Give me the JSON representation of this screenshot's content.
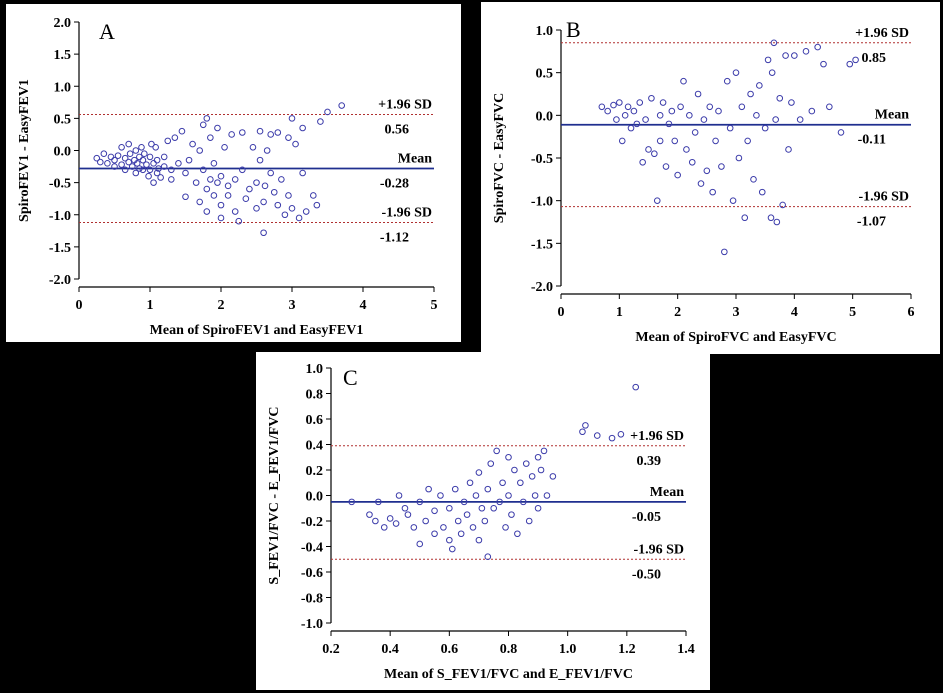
{
  "chart_data": [
    {
      "type": "scatter",
      "panel_label": "A",
      "xlabel": "Mean of SpiroFEV1 and EasyFEV1",
      "ylabel": "SpiroFEV1 - EasyFEV1",
      "xlim": [
        0,
        5
      ],
      "ylim": [
        -2.0,
        2.0
      ],
      "xticks": [
        0,
        1,
        2,
        3,
        4,
        5
      ],
      "xtick_labels": [
        "0",
        "1",
        "2",
        "3",
        "4",
        "5"
      ],
      "yticks": [
        -2.0,
        -1.5,
        -1.0,
        -0.5,
        0.0,
        0.5,
        1.0,
        1.5,
        2.0
      ],
      "ytick_labels": [
        "-2.0",
        "-1.5",
        "-1.0",
        "-0.5",
        "0.0",
        "0.5",
        "1.0",
        "1.5",
        "2.0"
      ],
      "lines": {
        "upper": {
          "label": "+1.96 SD",
          "value_label": "0.56",
          "y": 0.56
        },
        "mean": {
          "label": "Mean",
          "value_label": "-0.28",
          "y": -0.28
        },
        "lower": {
          "label": "-1.96 SD",
          "value_label": "-1.12",
          "y": -1.12
        }
      },
      "colors": {
        "points": "#3c3caa",
        "mean_line": "#1f2f8f",
        "sd_line": "#b03030"
      },
      "points": [
        [
          0.25,
          -0.12
        ],
        [
          0.3,
          -0.18
        ],
        [
          0.35,
          -0.05
        ],
        [
          0.4,
          -0.2
        ],
        [
          0.45,
          -0.1
        ],
        [
          0.5,
          -0.15
        ],
        [
          0.5,
          -0.25
        ],
        [
          0.55,
          -0.08
        ],
        [
          0.6,
          -0.22
        ],
        [
          0.6,
          0.05
        ],
        [
          0.65,
          -0.3
        ],
        [
          0.65,
          -0.12
        ],
        [
          0.7,
          -0.18
        ],
        [
          0.7,
          0.1
        ],
        [
          0.72,
          -0.05
        ],
        [
          0.75,
          -0.25
        ],
        [
          0.78,
          -0.15
        ],
        [
          0.8,
          -0.35
        ],
        [
          0.8,
          0.0
        ],
        [
          0.82,
          -0.2
        ],
        [
          0.85,
          -0.1
        ],
        [
          0.85,
          -0.28
        ],
        [
          0.88,
          0.05
        ],
        [
          0.9,
          -0.3
        ],
        [
          0.9,
          -0.15
        ],
        [
          0.92,
          -0.05
        ],
        [
          0.95,
          -0.22
        ],
        [
          0.98,
          -0.4
        ],
        [
          1.0,
          -0.1
        ],
        [
          1.0,
          -0.3
        ],
        [
          1.02,
          0.1
        ],
        [
          1.05,
          -0.5
        ],
        [
          1.05,
          -0.2
        ],
        [
          1.08,
          0.05
        ],
        [
          1.1,
          -0.35
        ],
        [
          1.1,
          -0.15
        ],
        [
          1.12,
          -0.28
        ],
        [
          1.15,
          -0.42
        ],
        [
          1.2,
          -0.1
        ],
        [
          1.2,
          -0.25
        ],
        [
          1.25,
          0.15
        ],
        [
          1.3,
          -0.3
        ],
        [
          1.3,
          -0.45
        ],
        [
          1.35,
          0.2
        ],
        [
          1.4,
          -0.2
        ],
        [
          1.45,
          0.3
        ],
        [
          1.5,
          -0.35
        ],
        [
          1.5,
          -0.72
        ],
        [
          1.55,
          -0.15
        ],
        [
          1.6,
          0.1
        ],
        [
          1.65,
          -0.5
        ],
        [
          1.7,
          0.0
        ],
        [
          1.7,
          -0.8
        ],
        [
          1.75,
          0.4
        ],
        [
          1.75,
          -0.3
        ],
        [
          1.8,
          0.5
        ],
        [
          1.8,
          -0.6
        ],
        [
          1.8,
          -0.95
        ],
        [
          1.85,
          -0.45
        ],
        [
          1.85,
          0.2
        ],
        [
          1.9,
          -0.7
        ],
        [
          1.9,
          -0.2
        ],
        [
          1.95,
          0.35
        ],
        [
          1.95,
          -0.5
        ],
        [
          2.0,
          -0.85
        ],
        [
          2.0,
          -0.4
        ],
        [
          2.0,
          -1.05
        ],
        [
          2.05,
          0.05
        ],
        [
          2.1,
          -0.55
        ],
        [
          2.1,
          -0.7
        ],
        [
          2.15,
          0.25
        ],
        [
          2.2,
          -0.45
        ],
        [
          2.2,
          -0.95
        ],
        [
          2.25,
          -1.1
        ],
        [
          2.3,
          -0.3
        ],
        [
          2.3,
          0.28
        ],
        [
          2.35,
          -0.75
        ],
        [
          2.4,
          -0.6
        ],
        [
          2.45,
          0.05
        ],
        [
          2.5,
          -0.9
        ],
        [
          2.5,
          -0.5
        ],
        [
          2.55,
          0.3
        ],
        [
          2.55,
          -0.15
        ],
        [
          2.6,
          -0.8
        ],
        [
          2.6,
          -1.28
        ],
        [
          2.62,
          -0.55
        ],
        [
          2.65,
          0.0
        ],
        [
          2.7,
          -0.35
        ],
        [
          2.7,
          0.25
        ],
        [
          2.75,
          -0.65
        ],
        [
          2.8,
          -0.85
        ],
        [
          2.8,
          0.28
        ],
        [
          2.85,
          -0.45
        ],
        [
          2.9,
          -1.0
        ],
        [
          2.95,
          0.2
        ],
        [
          2.95,
          -0.7
        ],
        [
          3.0,
          0.5
        ],
        [
          3.0,
          -0.9
        ],
        [
          3.05,
          0.1
        ],
        [
          3.1,
          -1.05
        ],
        [
          3.15,
          -0.35
        ],
        [
          3.15,
          0.35
        ],
        [
          3.2,
          -0.95
        ],
        [
          3.3,
          -0.7
        ],
        [
          3.35,
          -0.85
        ],
        [
          3.4,
          0.45
        ],
        [
          3.5,
          0.6
        ],
        [
          3.7,
          0.7
        ]
      ]
    },
    {
      "type": "scatter",
      "panel_label": "B",
      "xlabel": "Mean of SpiroFVC and EasyFVC",
      "ylabel": "SpiroFVC - EasyFVC",
      "xlim": [
        0,
        6
      ],
      "ylim": [
        -2.0,
        1.0
      ],
      "xticks": [
        0,
        1,
        2,
        3,
        4,
        5,
        6
      ],
      "xtick_labels": [
        "0",
        "1",
        "2",
        "3",
        "4",
        "5",
        "6"
      ],
      "yticks": [
        -2.0,
        -1.5,
        -1.0,
        -0.5,
        0.0,
        0.5,
        1.0
      ],
      "ytick_labels": [
        "-2.0",
        "-1.5",
        "-1.0",
        "-0.5",
        "0.0",
        "0.5",
        "1.0"
      ],
      "lines": {
        "upper": {
          "label": "+1.96 SD",
          "value_label": "0.85",
          "y": 0.85
        },
        "mean": {
          "label": "Mean",
          "value_label": "-0.11",
          "y": -0.11
        },
        "lower": {
          "label": "-1.96 SD",
          "value_label": "-1.07",
          "y": -1.07
        }
      },
      "colors": {
        "points": "#3c3caa",
        "mean_line": "#1f2f8f",
        "sd_line": "#b03030"
      },
      "points": [
        [
          0.7,
          0.1
        ],
        [
          0.8,
          0.05
        ],
        [
          0.9,
          0.12
        ],
        [
          0.95,
          -0.05
        ],
        [
          1.0,
          0.15
        ],
        [
          1.05,
          -0.3
        ],
        [
          1.1,
          0.0
        ],
        [
          1.15,
          0.1
        ],
        [
          1.2,
          -0.15
        ],
        [
          1.25,
          0.05
        ],
        [
          1.3,
          -0.1
        ],
        [
          1.35,
          0.15
        ],
        [
          1.4,
          -0.55
        ],
        [
          1.45,
          -0.05
        ],
        [
          1.5,
          -0.4
        ],
        [
          1.55,
          0.2
        ],
        [
          1.6,
          -0.45
        ],
        [
          1.65,
          -1.0
        ],
        [
          1.7,
          0.0
        ],
        [
          1.7,
          -0.3
        ],
        [
          1.75,
          0.15
        ],
        [
          1.8,
          -0.6
        ],
        [
          1.85,
          -0.1
        ],
        [
          1.9,
          0.05
        ],
        [
          1.95,
          -0.3
        ],
        [
          2.0,
          -0.7
        ],
        [
          2.05,
          0.1
        ],
        [
          2.1,
          0.4
        ],
        [
          2.15,
          -0.4
        ],
        [
          2.2,
          0.0
        ],
        [
          2.25,
          -0.55
        ],
        [
          2.3,
          -0.2
        ],
        [
          2.35,
          0.25
        ],
        [
          2.4,
          -0.8
        ],
        [
          2.45,
          -0.05
        ],
        [
          2.5,
          -0.65
        ],
        [
          2.55,
          0.1
        ],
        [
          2.6,
          -0.9
        ],
        [
          2.65,
          -0.3
        ],
        [
          2.7,
          0.05
        ],
        [
          2.75,
          -0.6
        ],
        [
          2.8,
          -1.6
        ],
        [
          2.85,
          0.4
        ],
        [
          2.9,
          -0.15
        ],
        [
          2.95,
          -1.0
        ],
        [
          3.0,
          0.5
        ],
        [
          3.05,
          -0.5
        ],
        [
          3.1,
          0.1
        ],
        [
          3.15,
          -1.2
        ],
        [
          3.2,
          -0.3
        ],
        [
          3.25,
          0.25
        ],
        [
          3.3,
          -0.75
        ],
        [
          3.35,
          0.0
        ],
        [
          3.4,
          0.35
        ],
        [
          3.45,
          -0.9
        ],
        [
          3.5,
          -0.15
        ],
        [
          3.55,
          0.65
        ],
        [
          3.6,
          -1.2
        ],
        [
          3.62,
          0.5
        ],
        [
          3.65,
          0.85
        ],
        [
          3.68,
          -0.05
        ],
        [
          3.7,
          -1.25
        ],
        [
          3.75,
          0.2
        ],
        [
          3.8,
          -1.05
        ],
        [
          3.85,
          0.7
        ],
        [
          3.9,
          -0.4
        ],
        [
          3.95,
          0.15
        ],
        [
          4.0,
          0.7
        ],
        [
          4.1,
          -0.05
        ],
        [
          4.2,
          0.75
        ],
        [
          4.3,
          0.05
        ],
        [
          4.4,
          0.8
        ],
        [
          4.5,
          0.6
        ],
        [
          4.6,
          0.1
        ],
        [
          4.8,
          -0.2
        ],
        [
          4.95,
          0.6
        ],
        [
          5.05,
          0.65
        ]
      ]
    },
    {
      "type": "scatter",
      "panel_label": "C",
      "xlabel": "Mean of S_FEV1/FVC and E_FEV1/FVC",
      "ylabel": "S_FEV1/FVC - E_FEV1/FVC",
      "xlim": [
        0.2,
        1.4
      ],
      "ylim": [
        -1.0,
        1.0
      ],
      "xticks": [
        0.2,
        0.4,
        0.6,
        0.8,
        1.0,
        1.2,
        1.4
      ],
      "xtick_labels": [
        "0.2",
        "0.4",
        "0.6",
        "0.8",
        "1.0",
        "1.2",
        "1.4"
      ],
      "yticks": [
        -1.0,
        -0.8,
        -0.6,
        -0.4,
        -0.2,
        0.0,
        0.2,
        0.4,
        0.6,
        0.8,
        1.0
      ],
      "ytick_labels": [
        "-1.0",
        "-0.8",
        "-0.6",
        "-0.4",
        "-0.2",
        "0.0",
        "0.2",
        "0.4",
        "0.6",
        "0.8",
        "1.0"
      ],
      "lines": {
        "upper": {
          "label": "+1.96 SD",
          "value_label": "0.39",
          "y": 0.39
        },
        "mean": {
          "label": "Mean",
          "value_label": "-0.05",
          "y": -0.05
        },
        "lower": {
          "label": "-1.96 SD",
          "value_label": "-0.50",
          "y": -0.5
        }
      },
      "colors": {
        "points": "#3c3caa",
        "mean_line": "#1f2f8f",
        "sd_line": "#b03030"
      },
      "points": [
        [
          0.27,
          -0.05
        ],
        [
          0.33,
          -0.15
        ],
        [
          0.35,
          -0.2
        ],
        [
          0.36,
          -0.05
        ],
        [
          0.38,
          -0.25
        ],
        [
          0.4,
          -0.18
        ],
        [
          0.42,
          -0.22
        ],
        [
          0.43,
          0.0
        ],
        [
          0.45,
          -0.1
        ],
        [
          0.46,
          -0.15
        ],
        [
          0.48,
          -0.25
        ],
        [
          0.5,
          -0.05
        ],
        [
          0.5,
          -0.38
        ],
        [
          0.52,
          -0.2
        ],
        [
          0.53,
          0.05
        ],
        [
          0.55,
          -0.12
        ],
        [
          0.55,
          -0.3
        ],
        [
          0.57,
          0.0
        ],
        [
          0.58,
          -0.25
        ],
        [
          0.6,
          -0.35
        ],
        [
          0.6,
          -0.1
        ],
        [
          0.61,
          -0.42
        ],
        [
          0.62,
          0.05
        ],
        [
          0.63,
          -0.2
        ],
        [
          0.64,
          -0.3
        ],
        [
          0.65,
          -0.05
        ],
        [
          0.66,
          -0.15
        ],
        [
          0.67,
          0.1
        ],
        [
          0.68,
          -0.25
        ],
        [
          0.69,
          0.0
        ],
        [
          0.7,
          -0.35
        ],
        [
          0.7,
          0.18
        ],
        [
          0.71,
          -0.1
        ],
        [
          0.72,
          -0.2
        ],
        [
          0.73,
          0.05
        ],
        [
          0.73,
          -0.48
        ],
        [
          0.74,
          0.25
        ],
        [
          0.75,
          -0.1
        ],
        [
          0.76,
          0.35
        ],
        [
          0.77,
          -0.05
        ],
        [
          0.78,
          0.1
        ],
        [
          0.79,
          -0.25
        ],
        [
          0.8,
          0.3
        ],
        [
          0.8,
          0.0
        ],
        [
          0.81,
          -0.15
        ],
        [
          0.82,
          0.2
        ],
        [
          0.83,
          -0.3
        ],
        [
          0.84,
          0.1
        ],
        [
          0.85,
          -0.05
        ],
        [
          0.86,
          0.25
        ],
        [
          0.87,
          -0.2
        ],
        [
          0.88,
          0.15
        ],
        [
          0.89,
          0.0
        ],
        [
          0.9,
          0.3
        ],
        [
          0.9,
          -0.1
        ],
        [
          0.91,
          0.2
        ],
        [
          0.92,
          0.35
        ],
        [
          0.93,
          0.0
        ],
        [
          0.95,
          0.15
        ],
        [
          1.05,
          0.5
        ],
        [
          1.06,
          0.55
        ],
        [
          1.1,
          0.47
        ],
        [
          1.15,
          0.45
        ],
        [
          1.18,
          0.48
        ],
        [
          1.23,
          0.85
        ]
      ]
    }
  ]
}
